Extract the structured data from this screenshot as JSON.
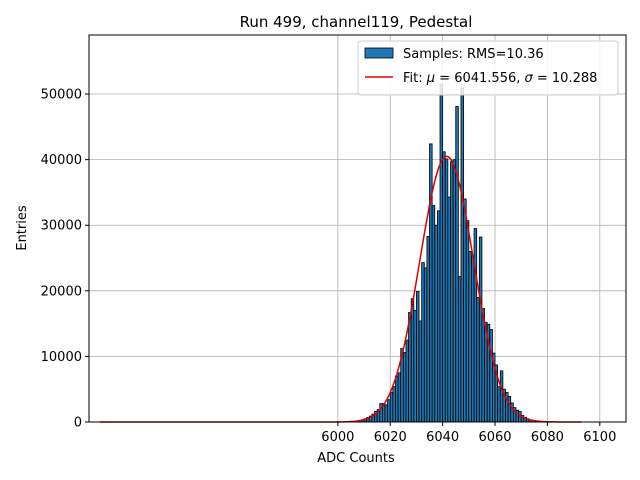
{
  "chart_data": {
    "type": "bar",
    "title": "Run 499, channel119, Pedestal",
    "xlabel": "ADC Counts",
    "ylabel": "Entries",
    "xlim": [
      5905,
      6110
    ],
    "ylim": [
      0,
      59000
    ],
    "xticks": [
      6000,
      6020,
      6040,
      6060,
      6080,
      6100
    ],
    "yticks": [
      0,
      10000,
      20000,
      30000,
      40000,
      50000
    ],
    "grid": true,
    "legend_position": "top-right",
    "bar_color": "#1f77b4",
    "bar_edge_color": "#000000",
    "fit_color": "#e00000",
    "legend": {
      "samples_label": "Samples: RMS=10.36",
      "fit_prefix": "Fit: ",
      "fit_mu_symbol": "μ",
      "fit_mu_value": " = 6041.556, ",
      "fit_sigma_symbol": "σ",
      "fit_sigma_value": " = 10.288"
    },
    "bins": {
      "start": 5995,
      "width": 1,
      "counts": [
        0,
        0,
        0,
        0,
        0,
        0,
        0,
        0,
        0,
        0,
        0,
        100,
        150,
        250,
        350,
        500,
        700,
        900,
        1200,
        1600,
        1900,
        2800,
        2800,
        2600,
        3400,
        4500,
        5400,
        7000,
        7500,
        11200,
        10600,
        12500,
        16700,
        18800,
        17000,
        19900,
        15400,
        24300,
        23500,
        28300,
        42400,
        33000,
        30000,
        32200,
        51500,
        41200,
        40100,
        34300,
        39700,
        40000,
        48100,
        22200,
        50900,
        34000,
        30700,
        26000,
        25300,
        29500,
        19000,
        28200,
        17300,
        15200,
        14900,
        14100,
        10500,
        8700,
        5400,
        7800,
        5000,
        4500,
        3900,
        2900,
        2200,
        1800,
        1600,
        1000,
        700,
        500,
        300,
        200,
        100,
        50,
        0,
        0,
        0,
        0,
        0,
        0,
        0,
        0,
        0,
        0
      ]
    },
    "fit": {
      "mu": 6041.556,
      "sigma": 10.288,
      "amplitude": 40500,
      "x_range": [
        5909,
        6093
      ]
    }
  }
}
